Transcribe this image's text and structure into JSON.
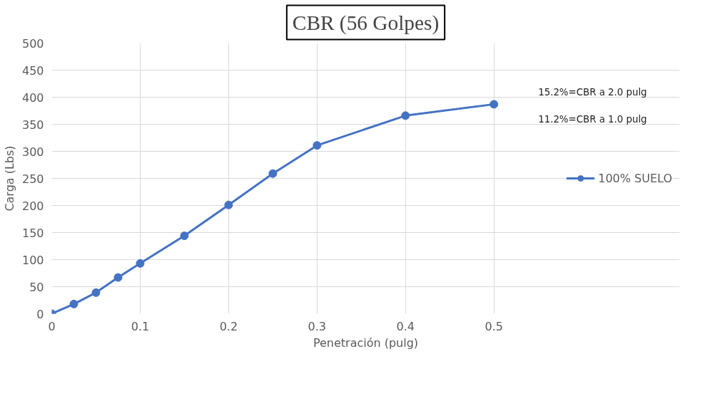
{
  "chart_data": {
    "type": "line",
    "title": "CBR (56 Golpes)",
    "xlabel": "Penetración (pulg)",
    "ylabel": "Carga (Lbs)",
    "x": [
      0,
      0.025,
      0.05,
      0.075,
      0.1,
      0.15,
      0.2,
      0.25,
      0.3,
      0.4,
      0.5
    ],
    "series": [
      {
        "name": "100% SUELO",
        "color": "#4472c4",
        "values": [
          0,
          18,
          39,
          67,
          93,
          144,
          201,
          259,
          311,
          366,
          387
        ]
      }
    ],
    "xlim": [
      0,
      0.5
    ],
    "xticks": [
      0,
      0.1,
      0.2,
      0.3,
      0.4,
      0.5
    ],
    "ylim": [
      0,
      500
    ],
    "yticks": [
      0,
      50,
      100,
      150,
      200,
      250,
      300,
      350,
      400,
      450,
      500
    ],
    "grid": true,
    "legend": "right",
    "marker": "circle",
    "line_style": "solid",
    "annotations": [
      "15.2%=CBR a 2.0 pulg",
      "11.2%=CBR a 1.0 pulg"
    ]
  }
}
